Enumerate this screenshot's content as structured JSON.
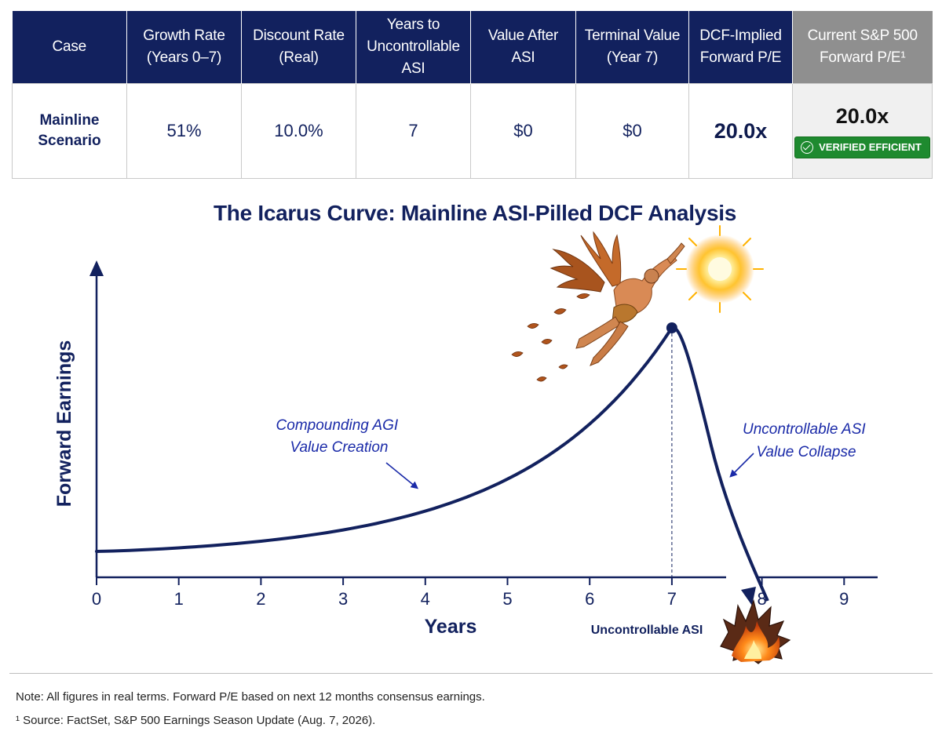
{
  "table": {
    "headers": [
      "Case",
      "Growth Rate\n(Years 0–7)",
      "Discount Rate\n(Real)",
      "Years to\nUncontrollable ASI",
      "Value After\nASI",
      "Terminal Value\n(Year 7)",
      "DCF-Implied\nForward P/E",
      "Current S&P 500\nForward P/E¹"
    ],
    "row": {
      "case": "Mainline\nScenario",
      "growth_rate": "51%",
      "discount_rate": "10.0%",
      "years_to_asi": "7",
      "value_after_asi": "$0",
      "terminal_value": "$0",
      "dcf_pe": "20.0x",
      "current_pe": "20.0x",
      "badge": "VERIFIED EFFICIENT"
    }
  },
  "chart_data": {
    "type": "line",
    "title": "The Icarus Curve: Mainline ASI-Pilled DCF Analysis",
    "xlabel": "Years",
    "ylabel": "Forward Earnings",
    "x_ticks": [
      0,
      1,
      2,
      3,
      4,
      5,
      6,
      7,
      8,
      9
    ],
    "xlim": [
      0,
      9
    ],
    "ylim": [
      0,
      1
    ],
    "grid": false,
    "series": [
      {
        "x": [
          0,
          1,
          2,
          3,
          4,
          5,
          6,
          7,
          7.4,
          7.8,
          8.0
        ],
        "y": [
          0.05,
          0.08,
          0.13,
          0.2,
          0.31,
          0.46,
          0.68,
          1.0,
          0.78,
          0.3,
          -0.06
        ]
      }
    ],
    "peak": {
      "x": 7,
      "y": 1.0
    },
    "annotations": [
      {
        "text": "Compounding AGI\nValue Creation"
      },
      {
        "text": "Uncontrollable ASI\nValue Collapse"
      },
      {
        "text": "Uncontrollable ASI"
      }
    ],
    "colors": {
      "line": "#12215e",
      "annotation": "#1a2aa8"
    },
    "icons": [
      "icarus-icon",
      "sun-icon",
      "feathers-icon",
      "crash-fire-icon"
    ]
  },
  "notes": {
    "note1": "Note: All figures in real terms. Forward P/E based on next 12 months consensus earnings.",
    "note2": "¹ Source: FactSet, S&P 500 Earnings Season Update (Aug. 7, 2026)."
  }
}
